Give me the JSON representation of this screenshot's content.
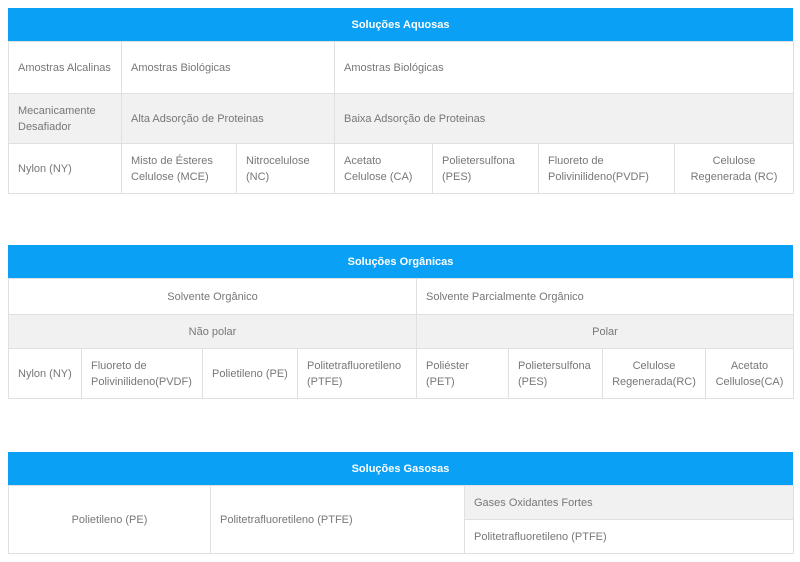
{
  "aquosas": {
    "title": "Soluções Aquosas",
    "row1": [
      "Amostras Alcalinas",
      "Amostras Biológicas",
      "Amostras Biológicas"
    ],
    "row2": [
      "Mecanicamente Desafiador",
      "Alta Adsorção de Proteinas",
      "Baixa Adsorção de Proteinas"
    ],
    "row3": [
      "Nylon (NY)",
      "Misto de Ésteres Celulose (MCE)",
      "Nitrocelulose (NC)",
      "Acetato Celulose (CA)",
      "Polietersulfona (PES)",
      "Fluoreto de Polivinilideno(PVDF)",
      "Celulose Regenerada (RC)"
    ]
  },
  "organicas": {
    "title": "Soluções Orgânicas",
    "row1": [
      "Solvente Orgânico",
      "Solvente Parcialmente Orgânico"
    ],
    "row2": [
      "Não polar",
      "Polar"
    ],
    "row3": [
      "Nylon (NY)",
      "Fluoreto de Polivinilideno(PVDF)",
      "Polietileno (PE)",
      "Politetrafluoretileno (PTFE)",
      "Poliéster (PET)",
      "Polietersulfona (PES)",
      "Celulose Regenerada(RC)",
      "Acetato Cellulose(CA)"
    ]
  },
  "gasosas": {
    "title": "Soluções Gasosas",
    "col1": "Polietileno (PE)",
    "col2": "Politetrafluoretileno (PTFE)",
    "col3_top": "Gases Oxidantes Fortes",
    "col3_bottom": "Politetrafluoretileno (PTFE)"
  }
}
